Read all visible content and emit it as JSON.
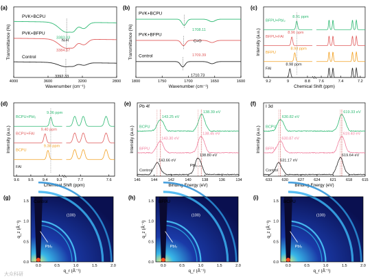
{
  "watermark": "大众科研",
  "colors": {
    "green": "#2ab870",
    "red": "#e05a5a",
    "orange": "#f2a020",
    "black": "#222222",
    "pink": "#f07a9a"
  },
  "chart_data": [
    {
      "panel": "(a)",
      "type": "line",
      "xlabel": "Wavenumber (cm⁻¹)",
      "ylabel": "Transmittance (%)",
      "xlim": [
        4000,
        2800
      ],
      "xticks": [
        4000,
        3600,
        3200,
        2800
      ],
      "series": [
        {
          "name": "PVK+BCPU",
          "color": "#2ab870",
          "offset": 3.0,
          "dip_center": 3383.03,
          "dip_depth": 0.6
        },
        {
          "name": "PVK+BFPU",
          "color": "#e05a5a",
          "offset": 2.0,
          "dip_center": 3384.67,
          "dip_depth": 0.55
        },
        {
          "name": "Control",
          "color": "#222222",
          "offset": 0.6,
          "dip_center": 3392.33,
          "dip_depth": 0.25
        }
      ],
      "annotations": [
        "3383.03",
        "N-H",
        "3384.67",
        "3392.33"
      ]
    },
    {
      "panel": "(b)",
      "type": "line",
      "xlabel": "Wavenumber (cm⁻¹)",
      "ylabel": "Transmittance (%)",
      "xlim": [
        1800,
        1600
      ],
      "xticks": [
        1800,
        1750,
        1700,
        1650,
        1600
      ],
      "series": [
        {
          "name": "PVK+BCPU",
          "color": "#2ab870",
          "offset": 3.0,
          "dip_center": 1708.11,
          "dip_depth": 0.35
        },
        {
          "name": "PVK+BFPU",
          "color": "#e05a5a",
          "offset": 1.8,
          "dip_center": 1709.39,
          "dip_depth": 0.3
        },
        {
          "name": "Control",
          "color": "#222222",
          "offset": 0.6,
          "dip_center": 1710.73,
          "dip_depth": 0.3
        }
      ],
      "annotations": [
        "1708.11",
        "C=O",
        "1709.39",
        "1710.73"
      ]
    },
    {
      "panel": "(c)",
      "type": "line",
      "xlabel": "Chemical Shift (ppm)",
      "ylabel": "Intensity (a.u.)",
      "xticks": [
        9.2,
        9.0,
        8.8,
        7.6,
        7.4,
        7.2
      ],
      "series": [
        {
          "name": "BFPU+PbI₂",
          "color": "#2ab870",
          "peak": 8.91
        },
        {
          "name": "BFPU+FAI",
          "color": "#e05a5a",
          "peak": 8.96
        },
        {
          "name": "BFPU",
          "color": "#f2a020",
          "peak": 8.93
        },
        {
          "name": "FAI",
          "color": "#222222",
          "peak": 8.98
        }
      ],
      "annotations": [
        "8.91 ppm",
        "8.96 ppm",
        "8.93 ppm",
        "8.98 ppm"
      ]
    },
    {
      "panel": "(d)",
      "type": "line",
      "xlabel": "Chemical Shift (ppm)",
      "ylabel": "Intensity (a.u.)",
      "xticks": [
        9.6,
        9.5,
        9.4,
        9.3,
        7.7,
        7.6
      ],
      "series": [
        {
          "name": "BCPU+PbI₂",
          "color": "#2ab870",
          "peak": 9.36
        },
        {
          "name": "BCPU+FAI",
          "color": "#e05a5a",
          "peak": 9.4
        },
        {
          "name": "BCPU",
          "color": "#f2a020",
          "peak": 9.38
        },
        {
          "name": "FAI",
          "color": "#222222",
          "peak": null
        }
      ],
      "annotations": [
        "9.36 ppm",
        "9.40 ppm",
        "9.38 ppm"
      ]
    },
    {
      "panel": "(e)",
      "type": "line",
      "title": "Pb 4f",
      "xlabel": "Binding Energy (eV)",
      "ylabel": "Intensity (a.u.)",
      "xlim": [
        146,
        134
      ],
      "xticks": [
        146,
        144,
        142,
        140,
        138,
        136,
        134
      ],
      "series": [
        {
          "name": "BCPU",
          "color": "#2ab870",
          "peaks": [
            143.25,
            138.39
          ]
        },
        {
          "name": "BFPU",
          "color": "#f07a9a",
          "peaks": [
            143.3,
            138.45
          ]
        },
        {
          "name": "Control",
          "color": "#222222",
          "peaks": [
            143.66,
            138.8
          ]
        }
      ],
      "annotations": [
        "143.25 eV",
        "138.39 eV",
        "143.30 eV",
        "138.45 eV",
        "143.66 eV",
        "138.80 eV",
        "PbI₂₋ₓ"
      ]
    },
    {
      "panel": "(f)",
      "type": "line",
      "title": "I 3d",
      "xlabel": "Binding Energy (eV)",
      "ylabel": "Intensity (a.u.)",
      "xlim": [
        634,
        615
      ],
      "xticks": [
        633,
        630,
        627,
        624,
        621,
        618,
        615
      ],
      "series": [
        {
          "name": "BCPU",
          "color": "#2ab870",
          "peaks": [
            630.82,
            619.33
          ]
        },
        {
          "name": "BFPU",
          "color": "#f07a9a",
          "peaks": [
            630.87,
            619.4
          ]
        },
        {
          "name": "Control",
          "color": "#222222",
          "peaks": [
            631.17,
            619.64
          ]
        }
      ],
      "annotations": [
        "630.82 eV",
        "619.33 eV",
        "630.87 eV",
        "619.40 eV",
        "631.17 eV",
        "619.64 eV"
      ]
    },
    {
      "panel": "(g)",
      "type": "heatmap",
      "label": "Control",
      "xlabel": "q_r (Å⁻¹)",
      "ylabel": "q_z (Å⁻¹)",
      "xlim": [
        -0.2,
        2.0
      ],
      "ylim": [
        0,
        1.6
      ],
      "xticks": [
        0.0,
        0.5,
        1.0,
        1.5,
        2.0
      ],
      "yticks": [
        0.0,
        0.5,
        1.0,
        1.5
      ],
      "annotations": [
        "(100)",
        "PbI₂"
      ]
    },
    {
      "panel": "(h)",
      "type": "heatmap",
      "label": "BFPU",
      "xlabel": "q_r (Å⁻¹)",
      "ylabel": "q_z (Å⁻¹)",
      "xlim": [
        -0.2,
        2.0
      ],
      "ylim": [
        0,
        1.6
      ],
      "xticks": [
        0.0,
        0.5,
        1.0,
        1.5,
        2.0
      ],
      "yticks": [
        0.0,
        0.5,
        1.0,
        1.5
      ],
      "annotations": [
        "(100)",
        "PbI₂"
      ]
    },
    {
      "panel": "(i)",
      "type": "heatmap",
      "label": "BCPU",
      "xlabel": "q_r (Å⁻¹)",
      "ylabel": "q_z (Å⁻¹)",
      "xlim": [
        -0.2,
        2.0
      ],
      "ylim": [
        0,
        1.6
      ],
      "xticks": [
        0.0,
        0.5,
        1.0,
        1.5,
        2.0
      ],
      "yticks": [
        0.0,
        0.5,
        1.0,
        1.5
      ],
      "annotations": [
        "(100)",
        "PbI₂"
      ]
    }
  ]
}
